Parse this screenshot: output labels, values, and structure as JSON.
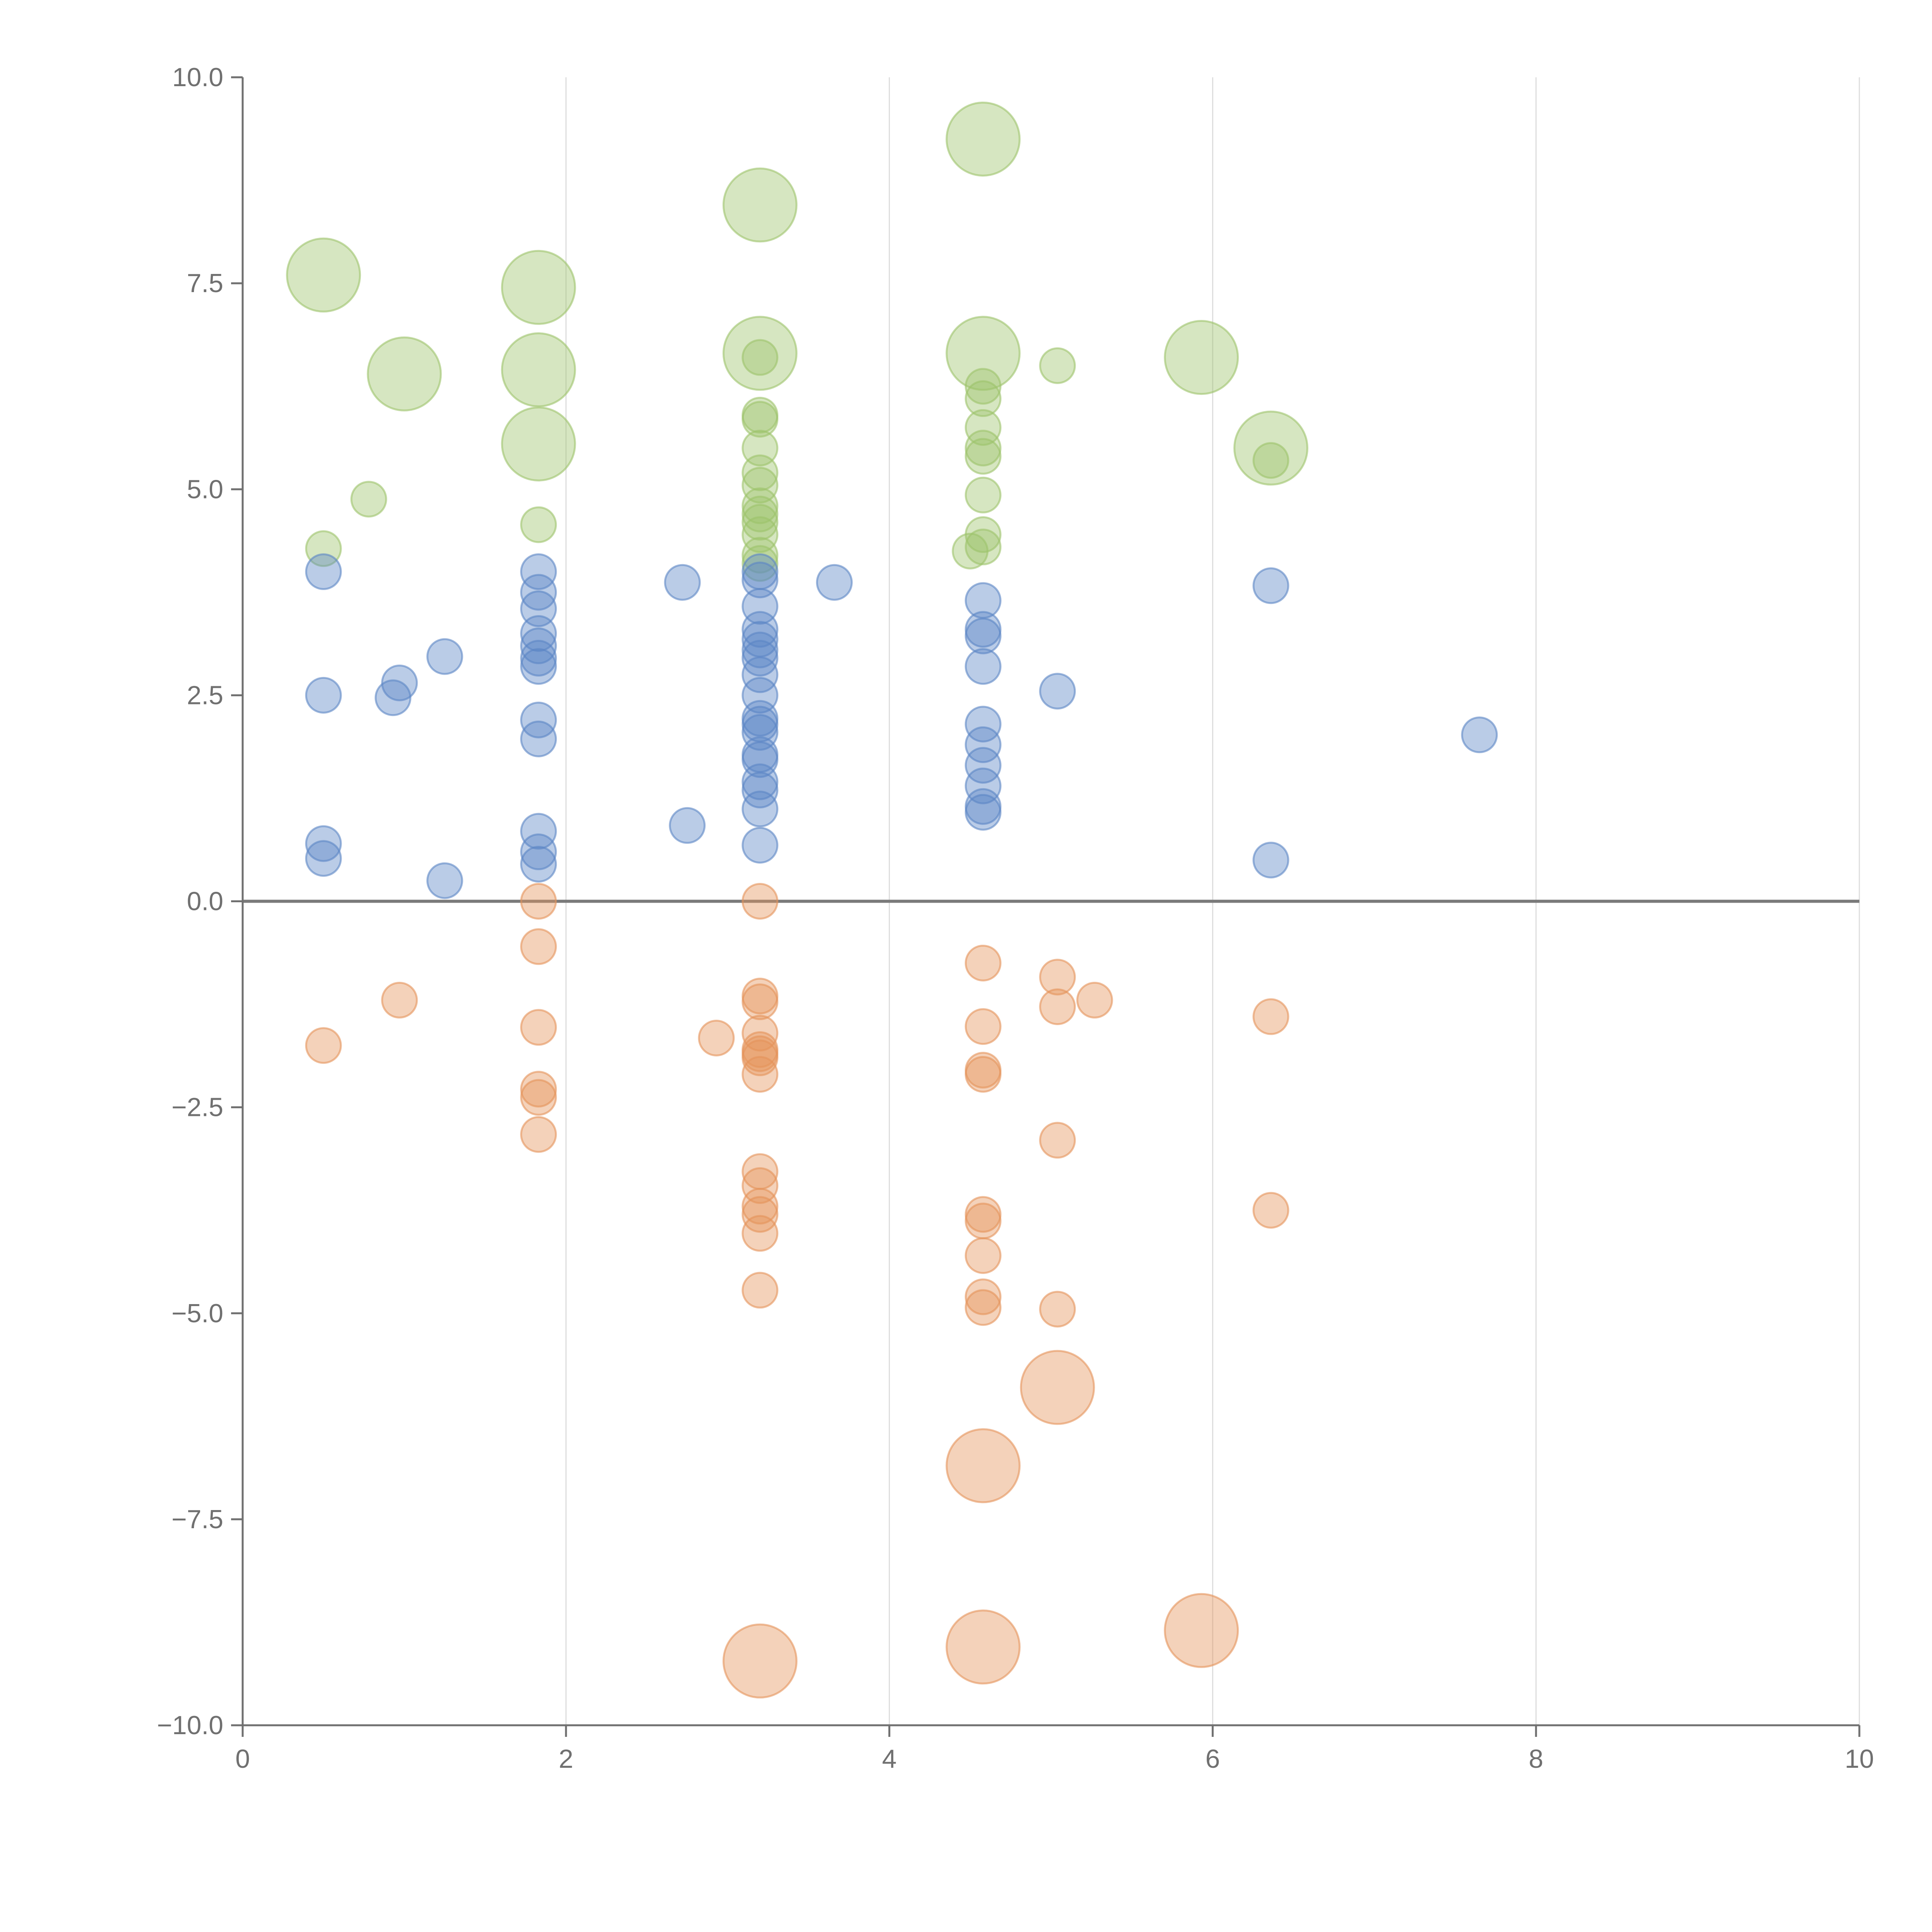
{
  "chart_data": {
    "type": "scatter",
    "title": "",
    "xlabel": "",
    "ylabel": "",
    "xlim": [
      0,
      10
    ],
    "ylim": [
      -10,
      10
    ],
    "x_ticks": [
      0,
      2,
      4,
      6,
      8,
      10
    ],
    "x_tick_labels": [
      "0",
      "2",
      "4",
      "6",
      "8",
      "10"
    ],
    "y_ticks": [
      10,
      7.5,
      5,
      2.5,
      0,
      -2.5,
      -5,
      -7.5,
      -10
    ],
    "y_tick_labels": [
      "10.0",
      "7.5",
      "5.0",
      "2.5",
      "0.0",
      "−2.5",
      "−5.0",
      "−7.5",
      "−10.0"
    ],
    "grid": "vertical",
    "zero_line": 0,
    "colors": {
      "green": "#9dc36b",
      "blue": "#5b86c5",
      "orange": "#e5935a",
      "axis": "#707070",
      "grid": "#dddddd",
      "zero_line": "#7a7a7a"
    },
    "series": [
      {
        "name": "green",
        "color": "#9dc36b",
        "points": [
          {
            "x": 0.5,
            "y": 7.6,
            "s": 2.1
          },
          {
            "x": 1.0,
            "y": 6.4,
            "s": 2.1
          },
          {
            "x": 1.83,
            "y": 7.45,
            "s": 2.1
          },
          {
            "x": 1.83,
            "y": 6.45,
            "s": 2.1
          },
          {
            "x": 1.83,
            "y": 5.55,
            "s": 2.1
          },
          {
            "x": 3.2,
            "y": 8.45,
            "s": 2.1
          },
          {
            "x": 3.2,
            "y": 6.65,
            "s": 2.1
          },
          {
            "x": 4.58,
            "y": 9.25,
            "s": 2.1
          },
          {
            "x": 4.58,
            "y": 6.65,
            "s": 2.1
          },
          {
            "x": 5.93,
            "y": 6.6,
            "s": 2.1
          },
          {
            "x": 6.36,
            "y": 5.5,
            "s": 2.1
          },
          {
            "x": 0.5,
            "y": 4.28,
            "s": 1
          },
          {
            "x": 0.78,
            "y": 4.88,
            "s": 1
          },
          {
            "x": 1.83,
            "y": 4.57,
            "s": 1
          },
          {
            "x": 3.2,
            "y": 6.6,
            "s": 1
          },
          {
            "x": 3.2,
            "y": 5.9,
            "s": 1
          },
          {
            "x": 3.2,
            "y": 5.85,
            "s": 1
          },
          {
            "x": 3.2,
            "y": 5.5,
            "s": 1
          },
          {
            "x": 3.2,
            "y": 5.2,
            "s": 1
          },
          {
            "x": 3.2,
            "y": 5.05,
            "s": 1
          },
          {
            "x": 3.2,
            "y": 4.8,
            "s": 1
          },
          {
            "x": 3.2,
            "y": 4.7,
            "s": 1
          },
          {
            "x": 3.2,
            "y": 4.6,
            "s": 1
          },
          {
            "x": 3.2,
            "y": 4.45,
            "s": 1
          },
          {
            "x": 3.2,
            "y": 4.2,
            "s": 1
          },
          {
            "x": 3.2,
            "y": 4.1,
            "s": 1
          },
          {
            "x": 4.58,
            "y": 6.25,
            "s": 1
          },
          {
            "x": 4.58,
            "y": 6.1,
            "s": 1
          },
          {
            "x": 4.58,
            "y": 5.75,
            "s": 1
          },
          {
            "x": 4.58,
            "y": 5.5,
            "s": 1
          },
          {
            "x": 4.58,
            "y": 5.4,
            "s": 1
          },
          {
            "x": 4.58,
            "y": 4.93,
            "s": 1
          },
          {
            "x": 4.58,
            "y": 4.45,
            "s": 1
          },
          {
            "x": 4.58,
            "y": 4.3,
            "s": 1
          },
          {
            "x": 4.5,
            "y": 4.25,
            "s": 1
          },
          {
            "x": 5.04,
            "y": 6.5,
            "s": 1
          },
          {
            "x": 6.36,
            "y": 5.35,
            "s": 1
          }
        ]
      },
      {
        "name": "blue",
        "color": "#5b86c5",
        "points": [
          {
            "x": 0.5,
            "y": 4.0,
            "s": 1
          },
          {
            "x": 0.5,
            "y": 2.5,
            "s": 1
          },
          {
            "x": 0.5,
            "y": 0.7,
            "s": 1
          },
          {
            "x": 0.5,
            "y": 0.52,
            "s": 1
          },
          {
            "x": 0.97,
            "y": 2.65,
            "s": 1
          },
          {
            "x": 0.93,
            "y": 2.47,
            "s": 1
          },
          {
            "x": 1.25,
            "y": 2.97,
            "s": 1
          },
          {
            "x": 1.25,
            "y": 0.25,
            "s": 1
          },
          {
            "x": 1.83,
            "y": 4.0,
            "s": 1
          },
          {
            "x": 1.83,
            "y": 3.75,
            "s": 1
          },
          {
            "x": 1.83,
            "y": 3.55,
            "s": 1
          },
          {
            "x": 1.83,
            "y": 3.25,
            "s": 1
          },
          {
            "x": 1.83,
            "y": 3.1,
            "s": 1
          },
          {
            "x": 1.83,
            "y": 2.95,
            "s": 1
          },
          {
            "x": 1.83,
            "y": 2.85,
            "s": 1
          },
          {
            "x": 1.83,
            "y": 2.2,
            "s": 1
          },
          {
            "x": 1.83,
            "y": 1.97,
            "s": 1
          },
          {
            "x": 1.83,
            "y": 0.85,
            "s": 1
          },
          {
            "x": 1.83,
            "y": 0.6,
            "s": 1
          },
          {
            "x": 1.83,
            "y": 0.45,
            "s": 1
          },
          {
            "x": 2.72,
            "y": 3.87,
            "s": 1
          },
          {
            "x": 2.75,
            "y": 0.92,
            "s": 1
          },
          {
            "x": 3.66,
            "y": 3.87,
            "s": 1
          },
          {
            "x": 3.2,
            "y": 4.0,
            "s": 1
          },
          {
            "x": 3.2,
            "y": 3.9,
            "s": 1
          },
          {
            "x": 3.2,
            "y": 3.58,
            "s": 1
          },
          {
            "x": 3.2,
            "y": 3.3,
            "s": 1
          },
          {
            "x": 3.2,
            "y": 3.18,
            "s": 1
          },
          {
            "x": 3.2,
            "y": 3.05,
            "s": 1
          },
          {
            "x": 3.2,
            "y": 2.95,
            "s": 1
          },
          {
            "x": 3.2,
            "y": 2.75,
            "s": 1
          },
          {
            "x": 3.2,
            "y": 2.5,
            "s": 1
          },
          {
            "x": 3.2,
            "y": 2.22,
            "s": 1
          },
          {
            "x": 3.2,
            "y": 2.15,
            "s": 1
          },
          {
            "x": 3.2,
            "y": 2.05,
            "s": 1
          },
          {
            "x": 3.2,
            "y": 1.78,
            "s": 1
          },
          {
            "x": 3.2,
            "y": 1.72,
            "s": 1
          },
          {
            "x": 3.2,
            "y": 1.45,
            "s": 1
          },
          {
            "x": 3.2,
            "y": 1.35,
            "s": 1
          },
          {
            "x": 3.2,
            "y": 1.12,
            "s": 1
          },
          {
            "x": 3.2,
            "y": 0.68,
            "s": 1
          },
          {
            "x": 4.58,
            "y": 3.65,
            "s": 1
          },
          {
            "x": 4.58,
            "y": 3.3,
            "s": 1
          },
          {
            "x": 4.58,
            "y": 3.22,
            "s": 1
          },
          {
            "x": 4.58,
            "y": 2.85,
            "s": 1
          },
          {
            "x": 4.58,
            "y": 2.15,
            "s": 1
          },
          {
            "x": 4.58,
            "y": 1.9,
            "s": 1
          },
          {
            "x": 4.58,
            "y": 1.65,
            "s": 1
          },
          {
            "x": 4.58,
            "y": 1.4,
            "s": 1
          },
          {
            "x": 4.58,
            "y": 1.15,
            "s": 1
          },
          {
            "x": 4.58,
            "y": 1.08,
            "s": 1
          },
          {
            "x": 5.04,
            "y": 2.55,
            "s": 1
          },
          {
            "x": 6.36,
            "y": 3.83,
            "s": 1
          },
          {
            "x": 6.36,
            "y": 0.5,
            "s": 1
          },
          {
            "x": 7.65,
            "y": 2.02,
            "s": 1
          }
        ]
      },
      {
        "name": "orange",
        "color": "#e5935a",
        "points": [
          {
            "x": 0.5,
            "y": -1.75,
            "s": 1
          },
          {
            "x": 0.97,
            "y": -1.2,
            "s": 1
          },
          {
            "x": 1.83,
            "y": 0.0,
            "s": 1
          },
          {
            "x": 1.83,
            "y": -0.55,
            "s": 1
          },
          {
            "x": 1.83,
            "y": -1.53,
            "s": 1
          },
          {
            "x": 1.83,
            "y": -2.28,
            "s": 1
          },
          {
            "x": 1.83,
            "y": -2.38,
            "s": 1
          },
          {
            "x": 1.83,
            "y": -2.83,
            "s": 1
          },
          {
            "x": 2.93,
            "y": -1.66,
            "s": 1
          },
          {
            "x": 3.2,
            "y": 0.0,
            "s": 1
          },
          {
            "x": 3.2,
            "y": -1.15,
            "s": 1
          },
          {
            "x": 3.2,
            "y": -1.22,
            "s": 1
          },
          {
            "x": 3.2,
            "y": -1.6,
            "s": 1
          },
          {
            "x": 3.2,
            "y": -1.8,
            "s": 1
          },
          {
            "x": 3.2,
            "y": -1.85,
            "s": 1
          },
          {
            "x": 3.2,
            "y": -1.9,
            "s": 1
          },
          {
            "x": 3.2,
            "y": -2.1,
            "s": 1
          },
          {
            "x": 3.2,
            "y": -3.28,
            "s": 1
          },
          {
            "x": 3.2,
            "y": -3.45,
            "s": 1
          },
          {
            "x": 3.2,
            "y": -3.7,
            "s": 1
          },
          {
            "x": 3.2,
            "y": -3.8,
            "s": 1
          },
          {
            "x": 3.2,
            "y": -4.03,
            "s": 1
          },
          {
            "x": 3.2,
            "y": -4.72,
            "s": 1
          },
          {
            "x": 4.58,
            "y": -0.75,
            "s": 1
          },
          {
            "x": 4.58,
            "y": -1.52,
            "s": 1
          },
          {
            "x": 4.58,
            "y": -2.05,
            "s": 1
          },
          {
            "x": 4.58,
            "y": -2.1,
            "s": 1
          },
          {
            "x": 4.58,
            "y": -3.8,
            "s": 1
          },
          {
            "x": 4.58,
            "y": -3.88,
            "s": 1
          },
          {
            "x": 4.58,
            "y": -4.3,
            "s": 1
          },
          {
            "x": 4.58,
            "y": -4.8,
            "s": 1
          },
          {
            "x": 4.58,
            "y": -4.93,
            "s": 1
          },
          {
            "x": 5.04,
            "y": -0.92,
            "s": 1
          },
          {
            "x": 5.04,
            "y": -1.28,
            "s": 1
          },
          {
            "x": 5.27,
            "y": -1.2,
            "s": 1
          },
          {
            "x": 5.04,
            "y": -2.9,
            "s": 1
          },
          {
            "x": 5.04,
            "y": -4.95,
            "s": 1
          },
          {
            "x": 6.36,
            "y": -1.4,
            "s": 1
          },
          {
            "x": 6.36,
            "y": -3.75,
            "s": 1
          },
          {
            "x": 5.04,
            "y": -5.9,
            "s": 2.1
          },
          {
            "x": 4.58,
            "y": -6.85,
            "s": 2.1
          },
          {
            "x": 3.2,
            "y": -9.22,
            "s": 2.1
          },
          {
            "x": 4.58,
            "y": -9.05,
            "s": 2.1
          },
          {
            "x": 5.93,
            "y": -8.85,
            "s": 2.1
          }
        ]
      }
    ]
  }
}
